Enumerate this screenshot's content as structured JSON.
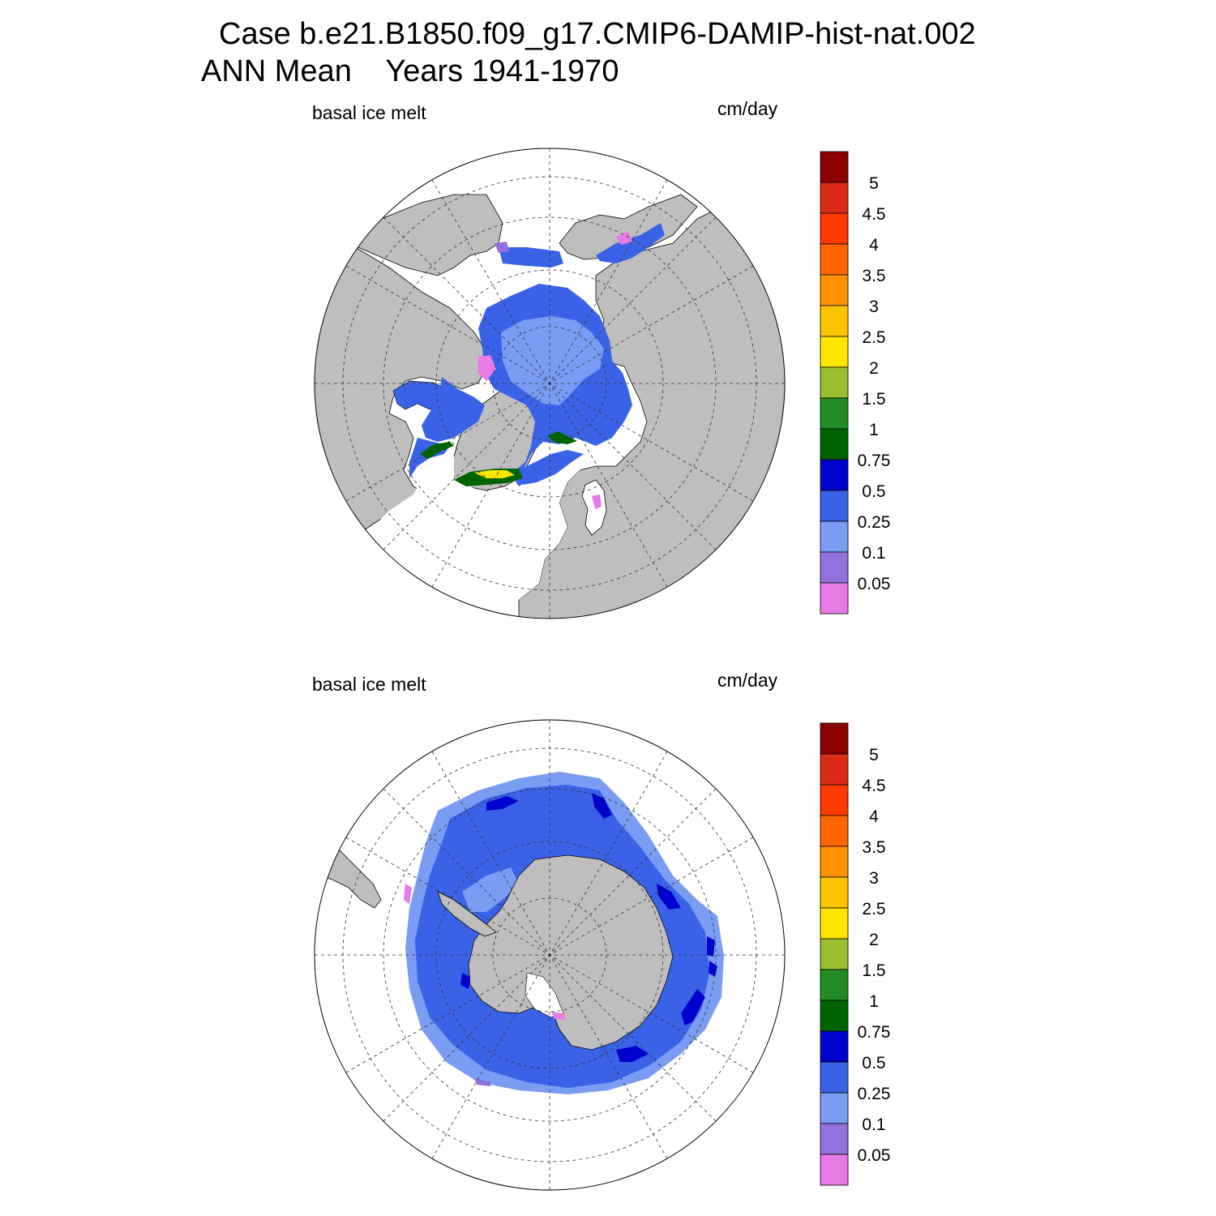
{
  "title_line1": "Case b.e21.B1850.f09_g17.CMIP6-DAMIP-hist-nat.002",
  "title_line2": "ANN Mean    Years 1941-1970",
  "panels": [
    {
      "label": "basal ice melt",
      "units": "cm/day",
      "hemisphere": "north"
    },
    {
      "label": "basal ice melt",
      "units": "cm/day",
      "hemisphere": "south"
    }
  ],
  "colorbar": {
    "levels": [
      "5",
      "4.5",
      "4",
      "3.5",
      "3",
      "2.5",
      "2",
      "1.5",
      "1",
      "0.75",
      "0.5",
      "0.25",
      "0.1",
      "0.05"
    ],
    "colors": [
      "#8b0000",
      "#dc2a14",
      "#ff3a00",
      "#ff6600",
      "#ff9200",
      "#ffc400",
      "#ffe400",
      "#9bbe31",
      "#238b23",
      "#006400",
      "#0000cd",
      "#3a62e6",
      "#7a9cf2",
      "#9370db",
      "#e67ae6"
    ]
  },
  "map_colors": {
    "land": "#bebebe",
    "ocean_no_ice": "#ffffff",
    "low_melt": "#7a9cf2",
    "mid_melt": "#3a62e6",
    "high_melt": "#0000cd"
  }
}
